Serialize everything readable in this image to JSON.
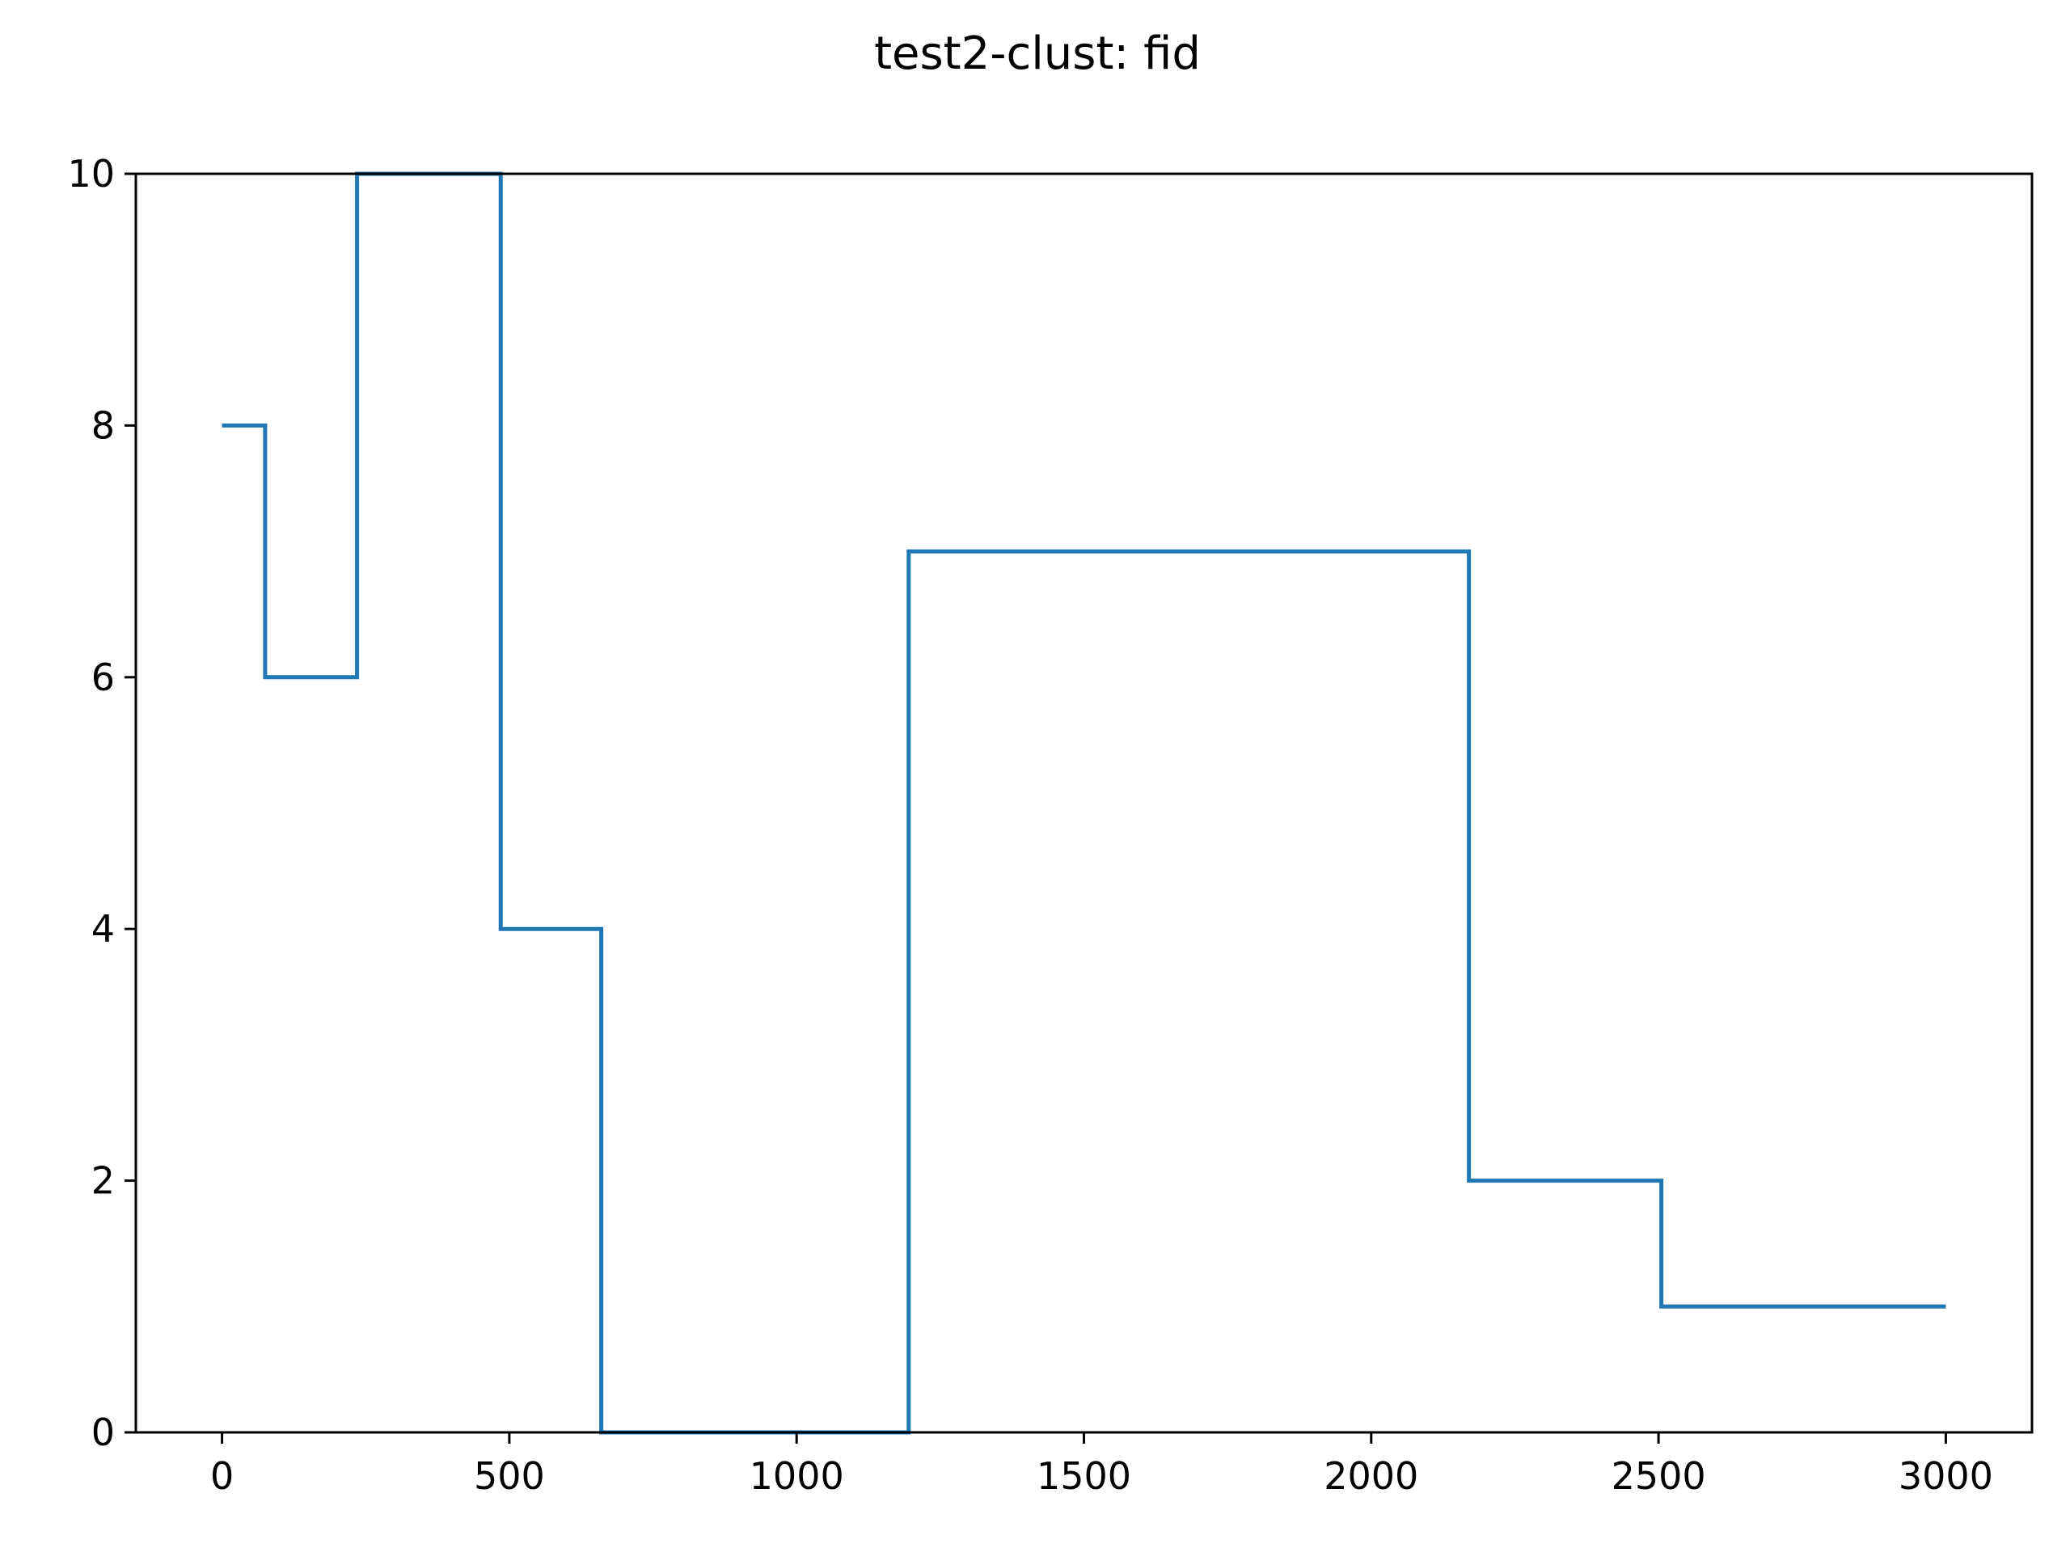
{
  "chart_data": {
    "type": "line",
    "drawstyle": "steps-post",
    "title": "test2-clust: fid",
    "xlabel": "",
    "ylabel": "",
    "xlim": [
      -150,
      3150
    ],
    "ylim": [
      0,
      10
    ],
    "xticks": [
      0,
      500,
      1000,
      1500,
      2000,
      2500,
      3000
    ],
    "yticks": [
      0,
      2,
      4,
      6,
      8,
      10
    ],
    "grid": false,
    "line_color": "#1f77b4",
    "series": [
      {
        "x": [
          0,
          75,
          235,
          485,
          660,
          1195,
          2170,
          2505,
          3000
        ],
        "y": [
          8,
          6,
          10,
          4,
          0,
          7,
          2,
          1,
          1
        ]
      }
    ]
  }
}
